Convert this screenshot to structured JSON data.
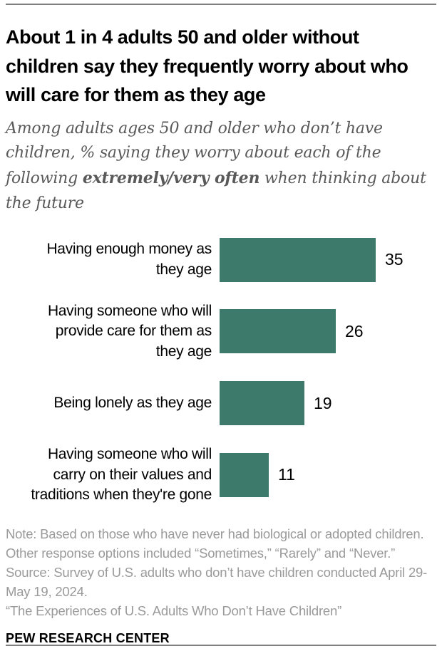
{
  "header": {
    "title": "About 1 in 4 adults 50 and older without children say they frequently worry about who will care for them as they age",
    "subtitle_pre": "Among adults ages 50 and older who don’t have children, % saying they worry about each of the following ",
    "subtitle_bold": "extremely/very often",
    "subtitle_post": " when thinking about the future"
  },
  "chart_data": {
    "type": "bar",
    "orientation": "horizontal",
    "categories": [
      "Having enough money as\nthey age",
      "Having someone who will\nprovide care for them as\nthey age",
      "Being lonely as they age",
      "Having someone who will\ncarry on their values and\ntraditions when they're gone"
    ],
    "values": [
      35,
      26,
      19,
      11
    ],
    "value_unit": "%",
    "xlim": [
      0,
      35
    ],
    "bar_color": "#3e7a6b",
    "grid": false,
    "legend": false,
    "value_labels": "end-of-bar"
  },
  "footer": {
    "note": "Note: Based on those who have never had biological or adopted children. Other response options included “Sometimes,” “Rarely” and “Never.”",
    "source": "Source: Survey of U.S. adults who don’t have children conducted April 29-May 19, 2024.",
    "report": "“The Experiences of U.S. Adults Who Don’t Have Children”",
    "brand": "PEW RESEARCH CENTER"
  }
}
